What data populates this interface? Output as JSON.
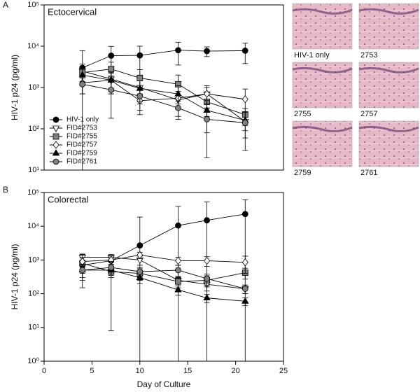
{
  "panel_labels": [
    "A",
    "B"
  ],
  "chart_data": [
    {
      "type": "line",
      "title": "Ectocervical",
      "y_label": "HIV-1 p24 (pg/ml)",
      "y_log": true,
      "x": [
        4,
        7,
        10,
        14,
        17,
        21
      ],
      "xlim": [
        0,
        25
      ],
      "ylim": [
        10,
        100000
      ],
      "yticks": [
        {
          "value": 10,
          "label": "10¹"
        },
        {
          "value": 100,
          "label": "10²"
        },
        {
          "value": 1000,
          "label": "10³"
        },
        {
          "value": 10000,
          "label": "10⁴"
        },
        {
          "value": 100000,
          "label": "10⁵"
        }
      ],
      "legend": "lower left",
      "series": [
        {
          "name": "HIV-1 only",
          "marker": "circle",
          "color": "#000000",
          "values": [
            3000,
            5900,
            6000,
            8000,
            7600,
            7800
          ],
          "errors": [
            4800,
            4000,
            4000,
            4500,
            2000,
            4000
          ]
        },
        {
          "name": "FID#2753",
          "marker": "triangle-down",
          "color": "#ffffff",
          "values": [
            2500,
            1600,
            1000,
            500,
            700,
            150
          ],
          "errors": [
            1200,
            900,
            600,
            300,
            400,
            60
          ]
        },
        {
          "name": "FID#2755",
          "marker": "square",
          "color": "#808080",
          "values": [
            2300,
            2800,
            1700,
            1200,
            450,
            220
          ],
          "errors": [
            900,
            1300,
            1000,
            800,
            250,
            90
          ]
        },
        {
          "name": "FID#2757",
          "marker": "diamond",
          "color": "#ffffff",
          "values": [
            1300,
            1500,
            480,
            550,
            700,
            520
          ],
          "errors": [
            600,
            700,
            200,
            250,
            300,
            400
          ]
        },
        {
          "name": "FID#2759",
          "marker": "triangle",
          "color": "#000000",
          "values": [
            2000,
            1500,
            950,
            700,
            280,
            160
          ],
          "errors": [
            900,
            800,
            500,
            400,
            200,
            100
          ]
        },
        {
          "name": "FID#2761",
          "marker": "circle",
          "color": "#808080",
          "values": [
            1200,
            880,
            620,
            320,
            170,
            140
          ],
          "errors": [
            500,
            700,
            400,
            150,
            150,
            110
          ]
        }
      ]
    },
    {
      "type": "line",
      "title": "Colorectal",
      "y_label": "HIV-1 p24 (pg/ml)",
      "x_label": "Day of Culture",
      "y_log": true,
      "x": [
        4,
        7,
        10,
        14,
        17,
        21
      ],
      "xlim": [
        0,
        25
      ],
      "xticks": [
        0,
        5,
        10,
        15,
        20,
        25
      ],
      "ylim": [
        1,
        100000
      ],
      "yticks": [
        {
          "value": 1,
          "label": "10⁰"
        },
        {
          "value": 10,
          "label": "10¹"
        },
        {
          "value": 100,
          "label": "10²"
        },
        {
          "value": 1000,
          "label": "10³"
        },
        {
          "value": 10000,
          "label": "10⁴"
        },
        {
          "value": 100000,
          "label": "10⁵"
        }
      ],
      "series": [
        {
          "marker": "circle",
          "color": "#000000",
          "values": [
            700,
            950,
            2700,
            10500,
            15000,
            23000
          ],
          "errors": [
            300,
            200,
            16000,
            28000,
            38000,
            38000
          ]
        },
        {
          "marker": "triangle-down",
          "color": "#ffffff",
          "values": [
            1200,
            1200,
            1000,
            250,
            190,
            140
          ],
          "errors": [
            300,
            250,
            300,
            80,
            70,
            40
          ]
        },
        {
          "marker": "square",
          "color": "#808080",
          "values": [
            800,
            450,
            400,
            230,
            250,
            420
          ],
          "errors": [
            650,
            442,
            150,
            80,
            90,
            150
          ]
        },
        {
          "marker": "diamond",
          "color": "#ffffff",
          "values": [
            900,
            1000,
            1400,
            950,
            950,
            850
          ],
          "errors": [
            300,
            300,
            300,
            250,
            300,
            450
          ]
        },
        {
          "marker": "triangle",
          "color": "#000000",
          "values": [
            500,
            500,
            300,
            130,
            75,
            60
          ],
          "errors": [
            200,
            150,
            100,
            40,
            20,
            15
          ]
        },
        {
          "marker": "circle",
          "color": "#808080",
          "values": [
            500,
            600,
            450,
            500,
            280,
            140
          ],
          "errors": [
            250,
            300,
            150,
            200,
            100,
            40
          ]
        }
      ]
    }
  ],
  "images": [
    {
      "label": "HIV-1 only"
    },
    {
      "label": "2753"
    },
    {
      "label": "2755"
    },
    {
      "label": "2757"
    },
    {
      "label": "2759"
    },
    {
      "label": "2761"
    }
  ]
}
